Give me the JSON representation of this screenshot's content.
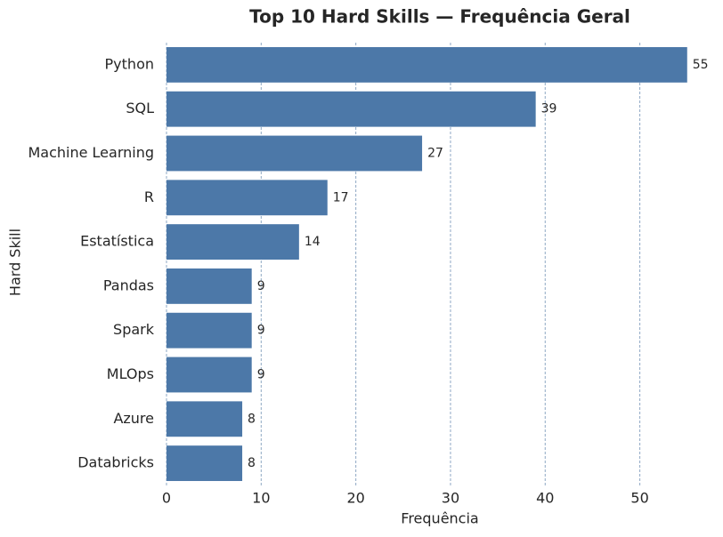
{
  "chart_data": {
    "type": "barh",
    "title": "Top 10 Hard Skills — Frequência Geral",
    "xlabel": "Frequência",
    "ylabel": "Hard Skill",
    "categories": [
      "Python",
      "SQL",
      "Machine Learning",
      "R",
      "Estatística",
      "Pandas",
      "Spark",
      "MLOps",
      "Azure",
      "Databricks"
    ],
    "values": [
      55,
      39,
      27,
      17,
      14,
      9,
      9,
      9,
      8,
      8
    ],
    "color": "#4c78a8",
    "xlim": [
      0,
      57.75
    ],
    "xticks": [
      0,
      10,
      20,
      30,
      40,
      50
    ],
    "grid": true
  }
}
